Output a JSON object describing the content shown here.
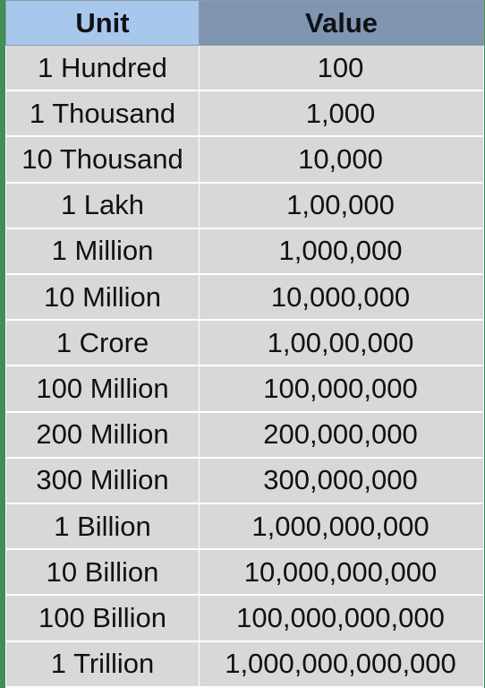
{
  "table": {
    "headers": {
      "unit": "Unit",
      "value": "Value"
    },
    "rows": [
      {
        "unit": "1 Hundred",
        "value": "100"
      },
      {
        "unit": "1 Thousand",
        "value": "1,000"
      },
      {
        "unit": "10 Thousand",
        "value": "10,000"
      },
      {
        "unit": "1 Lakh",
        "value": "1,00,000"
      },
      {
        "unit": "1 Million",
        "value": "1,000,000"
      },
      {
        "unit": "10 Million",
        "value": "10,000,000"
      },
      {
        "unit": "1 Crore",
        "value": "1,00,00,000"
      },
      {
        "unit": "100 Million",
        "value": "100,000,000"
      },
      {
        "unit": "200 Million",
        "value": "200,000,000"
      },
      {
        "unit": "300 Million",
        "value": "300,000,000"
      },
      {
        "unit": "1 Billion",
        "value": "1,000,000,000"
      },
      {
        "unit": "10 Billion",
        "value": "10,000,000,000"
      },
      {
        "unit": "100 Billion",
        "value": "100,000,000,000"
      },
      {
        "unit": "1 Trillion",
        "value": "1,000,000,000,000"
      }
    ]
  },
  "colors": {
    "unit_header_bg": "#a8c7ed",
    "value_header_bg": "#7f95b0",
    "cell_bg": "#d8d8d8",
    "sheet_border": "#3f8f57"
  }
}
